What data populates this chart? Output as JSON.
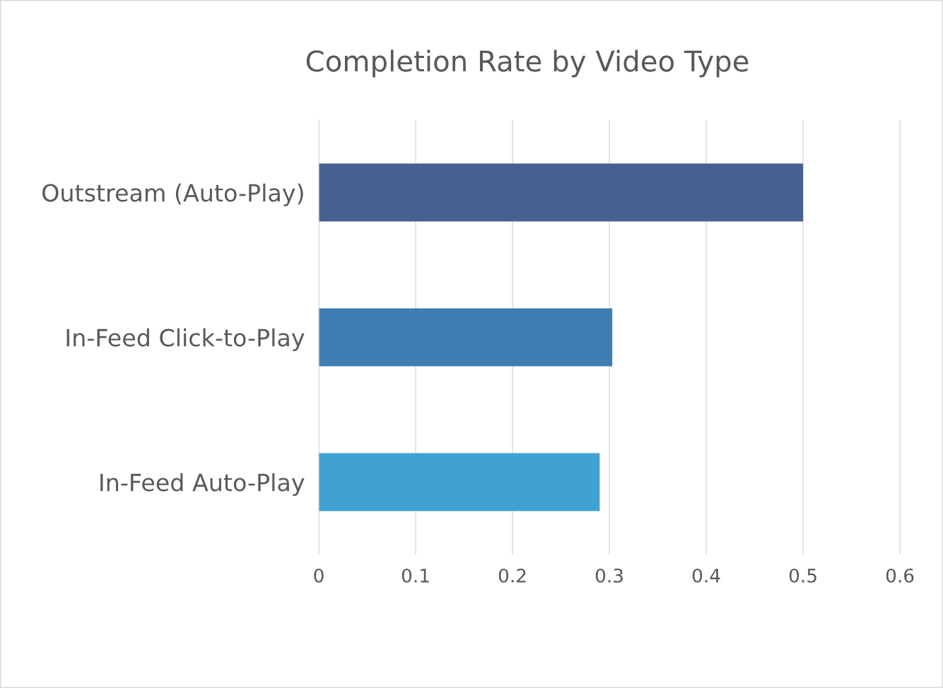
{
  "chart_data": {
    "type": "bar",
    "orientation": "horizontal",
    "title": "Completion Rate by Video Type",
    "categories": [
      "Outstream (Auto-Play)",
      "In-Feed Click-to-Play",
      "In-Feed Auto-Play"
    ],
    "values": [
      0.5,
      0.303,
      0.29
    ],
    "colors": [
      "#46618f",
      "#3f7db3",
      "#40a1d3"
    ],
    "xlim": [
      0,
      0.643
    ],
    "xticks": [
      0,
      0.1,
      0.2,
      0.3,
      0.4,
      0.5,
      0.6
    ],
    "grid": "x",
    "legend": false
  }
}
